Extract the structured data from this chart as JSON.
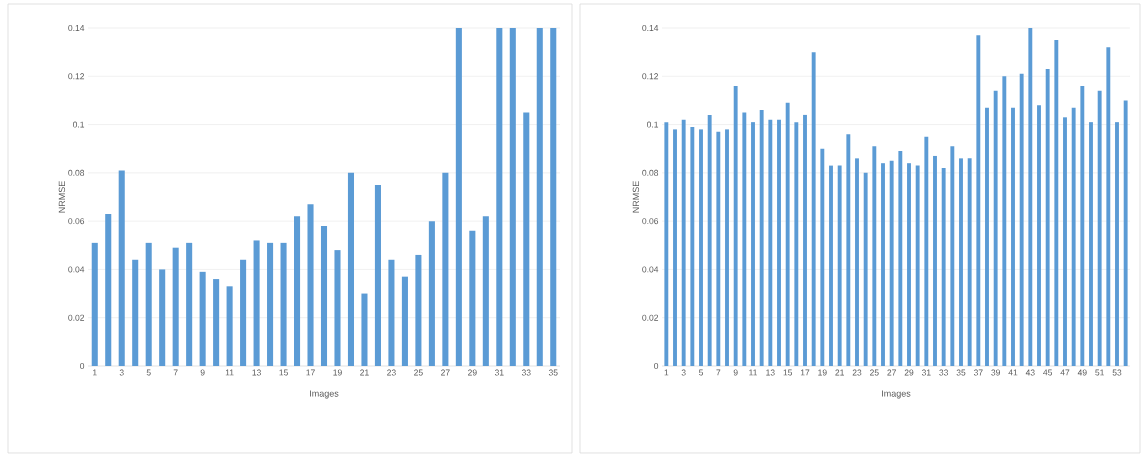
{
  "chart_data": [
    {
      "type": "bar",
      "xlabel": "Images",
      "ylabel": "NRMSE",
      "color": "#5b9bd5",
      "grid": "y",
      "ylim": [
        0,
        0.14
      ],
      "yticks": [
        0,
        0.02,
        0.04,
        0.06,
        0.08,
        0.1,
        0.12,
        0.14
      ],
      "categories": [
        "1",
        null,
        "3",
        null,
        "5",
        null,
        "7",
        null,
        "9",
        null,
        "11",
        null,
        "13",
        null,
        "15",
        null,
        "17",
        null,
        "19",
        null,
        "21",
        null,
        "23",
        null,
        "25",
        null,
        "27",
        null,
        "29",
        null,
        "31",
        null,
        "33",
        null,
        "35"
      ],
      "values": [
        0.051,
        0.063,
        0.081,
        0.044,
        0.051,
        0.04,
        0.049,
        0.051,
        0.039,
        0.036,
        0.033,
        0.044,
        0.052,
        0.051,
        0.051,
        0.062,
        0.067,
        0.058,
        0.048,
        0.08,
        0.03,
        0.075,
        0.044,
        0.037,
        0.046,
        0.06,
        0.08,
        0.14,
        0.056,
        0.062,
        0.14,
        0.14,
        0.105,
        0.14,
        0.14
      ]
    },
    {
      "type": "bar",
      "xlabel": "Images",
      "ylabel": "NRMSE",
      "color": "#5b9bd5",
      "grid": "y",
      "ylim": [
        0,
        0.14
      ],
      "yticks": [
        0,
        0.02,
        0.04,
        0.06,
        0.08,
        0.1,
        0.12,
        0.14
      ],
      "categories": [
        "1",
        null,
        "3",
        null,
        "5",
        null,
        "7",
        null,
        "9",
        null,
        "11",
        null,
        "13",
        null,
        "15",
        null,
        "17",
        null,
        "19",
        null,
        "21",
        null,
        "23",
        null,
        "25",
        null,
        "27",
        null,
        "29",
        null,
        "31",
        null,
        "33",
        null,
        "35",
        null,
        "37",
        null,
        "39",
        null,
        "41",
        null,
        "43",
        null,
        "45",
        null,
        "47",
        null,
        "49",
        null,
        "51",
        null,
        "53",
        null
      ],
      "values": [
        0.101,
        0.098,
        0.102,
        0.099,
        0.098,
        0.104,
        0.097,
        0.098,
        0.116,
        0.105,
        0.101,
        0.106,
        0.102,
        0.102,
        0.109,
        0.101,
        0.104,
        0.13,
        0.09,
        0.083,
        0.083,
        0.096,
        0.086,
        0.08,
        0.091,
        0.084,
        0.085,
        0.089,
        0.084,
        0.083,
        0.095,
        0.087,
        0.082,
        0.091,
        0.086,
        0.086,
        0.137,
        0.107,
        0.114,
        0.12,
        0.107,
        0.121,
        0.14,
        0.108,
        0.123,
        0.135,
        0.103,
        0.107,
        0.116,
        0.101,
        0.114,
        0.132,
        0.101,
        0.11
      ]
    }
  ]
}
